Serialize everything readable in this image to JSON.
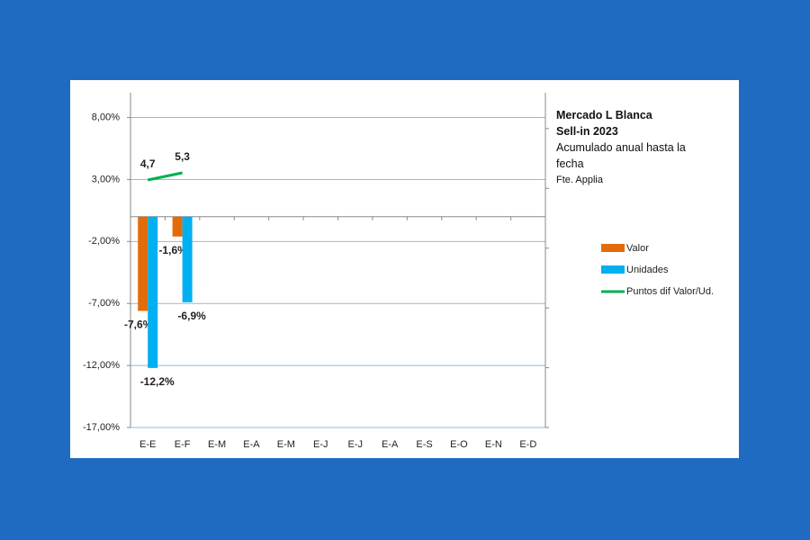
{
  "chart_data": {
    "type": "bar",
    "title": "Mercado L Blanca",
    "subtitle": "Sell-in 2023",
    "annotations": [
      "Acumulado anual hasta la fecha",
      "Fte. Applia"
    ],
    "categories": [
      "E-E",
      "E-F",
      "E-M",
      "E-A",
      "E-M",
      "E-J",
      "E-J",
      "E-A",
      "E-S",
      "E-O",
      "E-N",
      "E-D"
    ],
    "series": [
      {
        "name": "Valor",
        "color": "#e36c0a",
        "label_color": "#953735",
        "type": "bar",
        "values": [
          -7.6,
          -1.6,
          null,
          null,
          null,
          null,
          null,
          null,
          null,
          null,
          null,
          null
        ],
        "value_labels": [
          "-7,6%",
          "-1,6%",
          null,
          null,
          null,
          null,
          null,
          null,
          null,
          null,
          null,
          null
        ]
      },
      {
        "name": "Unidades",
        "color": "#00b0f0",
        "label_color": "#0070c0",
        "type": "bar",
        "values": [
          -12.2,
          -6.9,
          null,
          null,
          null,
          null,
          null,
          null,
          null,
          null,
          null,
          null
        ],
        "value_labels": [
          "-12,2%",
          "-6,9%",
          null,
          null,
          null,
          null,
          null,
          null,
          null,
          null,
          null,
          null
        ]
      },
      {
        "name": "Puntos dif Valor/Ud.",
        "color": "#00b050",
        "label_color": "#77933c",
        "type": "line",
        "axis": "y2",
        "values": [
          4.7,
          5.3,
          null,
          null,
          null,
          null,
          null,
          null,
          null,
          null,
          null,
          null
        ],
        "value_labels": [
          "4,7",
          "5,3",
          null,
          null,
          null,
          null,
          null,
          null,
          null,
          null,
          null,
          null
        ]
      }
    ],
    "ylim": [
      -17,
      10
    ],
    "yticks": [
      {
        "value": -17,
        "label": "-17,00%"
      },
      {
        "value": -12,
        "label": "-12,00%"
      },
      {
        "value": -7,
        "label": "-7,00%"
      },
      {
        "value": -2,
        "label": "-2,00%"
      },
      {
        "value": 3,
        "label": "3,00%"
      },
      {
        "value": 8,
        "label": "8,00%"
      }
    ],
    "y2lim": [
      -16,
      12
    ],
    "y2ticks": [
      -16,
      -11,
      -6,
      -1,
      4,
      9
    ],
    "grid": true,
    "grid_color": "#8fbcd6",
    "legend": "right"
  }
}
